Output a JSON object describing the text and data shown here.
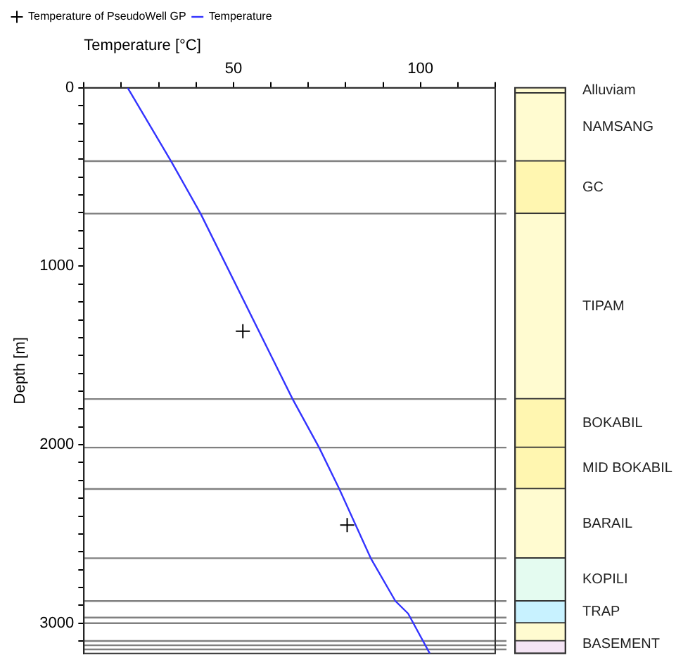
{
  "chart_data": [
    {
      "type": "line",
      "xlabel": "Temperature [°C]",
      "ylabel": "Depth [m]",
      "series": [
        {
          "name": "Temperature of PseudoWell GP",
          "type": "scatter",
          "marker": "cross",
          "color": "#000000",
          "x": [
            52.5,
            80.4
          ],
          "values": [
            1364,
            2450
          ]
        },
        {
          "name": "Temperature",
          "type": "line",
          "marker": "none",
          "color": "#3333ff",
          "x": [
            21.7,
            33.3,
            41.2,
            65.8,
            72.9,
            78.3,
            86.7,
            93.3,
            96.7,
            102.5
          ],
          "values": [
            0,
            411,
            705,
            1744,
            2016,
            2248,
            2636,
            2876,
            2946,
            3170
          ]
        }
      ],
      "xlim": [
        10,
        120
      ],
      "xticks": [
        {
          "value": 10,
          "label": null
        },
        {
          "value": 20,
          "label": null
        },
        {
          "value": 30,
          "label": null
        },
        {
          "value": 40,
          "label": null
        },
        50,
        {
          "value": 60,
          "label": null
        },
        {
          "value": 70,
          "label": null
        },
        {
          "value": 80,
          "label": null
        },
        {
          "value": 90,
          "label": null
        },
        100,
        {
          "value": 110,
          "label": null
        },
        {
          "value": 120,
          "label": null
        }
      ],
      "ylim": [
        3170,
        0
      ],
      "yticks": [
        0,
        {
          "value": 100,
          "label": null
        },
        {
          "value": 200,
          "label": null
        },
        {
          "value": 300,
          "label": null
        },
        {
          "value": 400,
          "label": null
        },
        {
          "value": 500,
          "label": null
        },
        {
          "value": 600,
          "label": null
        },
        {
          "value": 700,
          "label": null
        },
        {
          "value": 800,
          "label": null
        },
        {
          "value": 900,
          "label": null
        },
        1000,
        {
          "value": 1100,
          "label": null
        },
        {
          "value": 1200,
          "label": null
        },
        {
          "value": 1300,
          "label": null
        },
        {
          "value": 1400,
          "label": null
        },
        {
          "value": 1500,
          "label": null
        },
        {
          "value": 1600,
          "label": null
        },
        {
          "value": 1700,
          "label": null
        },
        {
          "value": 1800,
          "label": null
        },
        {
          "value": 1900,
          "label": null
        },
        2000,
        {
          "value": 2100,
          "label": null
        },
        {
          "value": 2200,
          "label": null
        },
        {
          "value": 2300,
          "label": null
        },
        {
          "value": 2400,
          "label": null
        },
        {
          "value": 2500,
          "label": null
        },
        {
          "value": 2600,
          "label": null
        },
        {
          "value": 2700,
          "label": null
        },
        {
          "value": 2800,
          "label": null
        },
        {
          "value": 2900,
          "label": null
        },
        3000,
        {
          "value": 3100,
          "label": null
        }
      ],
      "ref_lines": [
        {
          "axis": "y",
          "value": 411,
          "color": "#808080"
        },
        {
          "axis": "y",
          "value": 705,
          "color": "#808080"
        },
        {
          "axis": "y",
          "value": 1744,
          "color": "#808080"
        },
        {
          "axis": "y",
          "value": 2016,
          "color": "#808080"
        },
        {
          "axis": "y",
          "value": 2248,
          "color": "#808080"
        },
        {
          "axis": "y",
          "value": 2636,
          "color": "#808080"
        },
        {
          "axis": "y",
          "value": 2876,
          "color": "#808080"
        },
        {
          "axis": "y",
          "value": 2969,
          "color": "#808080"
        },
        {
          "axis": "y",
          "value": 3000,
          "color": "#808080"
        },
        {
          "axis": "y",
          "value": 3100,
          "color": "#808080"
        },
        {
          "axis": "y",
          "value": 3124,
          "color": "#808080"
        },
        {
          "axis": "y",
          "value": 3147,
          "color": "#808080"
        }
      ],
      "grid": false,
      "legend": "top left"
    },
    {
      "type": "bar",
      "stacked": true,
      "categories": [
        null
      ],
      "ylim": [
        3170,
        0
      ],
      "series": [
        {
          "name": "Alluviam",
          "color": "#fffbd0",
          "values": [
            30
          ]
        },
        {
          "name": "NAMSANG",
          "color": "#fffbd0",
          "values": [
            381
          ]
        },
        {
          "name": "GC",
          "color": "#fff6b0",
          "values": [
            294
          ]
        },
        {
          "name": "TIPAM",
          "color": "#fffbd0",
          "values": [
            1039
          ]
        },
        {
          "name": "BOKABIL",
          "color": "#fff6b0",
          "values": [
            272
          ]
        },
        {
          "name": "MID BOKABIL",
          "color": "#fff6b0",
          "values": [
            232
          ]
        },
        {
          "name": "BARAIL",
          "color": "#fffbd0",
          "values": [
            388
          ]
        },
        {
          "name": "KOPILI",
          "color": "#e4fbf0",
          "values": [
            240
          ]
        },
        {
          "name": "TRAP",
          "color": "#c8f2ff",
          "values": [
            124
          ]
        },
        {
          "color": "#fffbd0",
          "values": [
            100
          ]
        },
        {
          "name": "BASEMENT",
          "color": "#f4e4f4",
          "values": [
            70
          ]
        }
      ],
      "legend": false
    }
  ]
}
